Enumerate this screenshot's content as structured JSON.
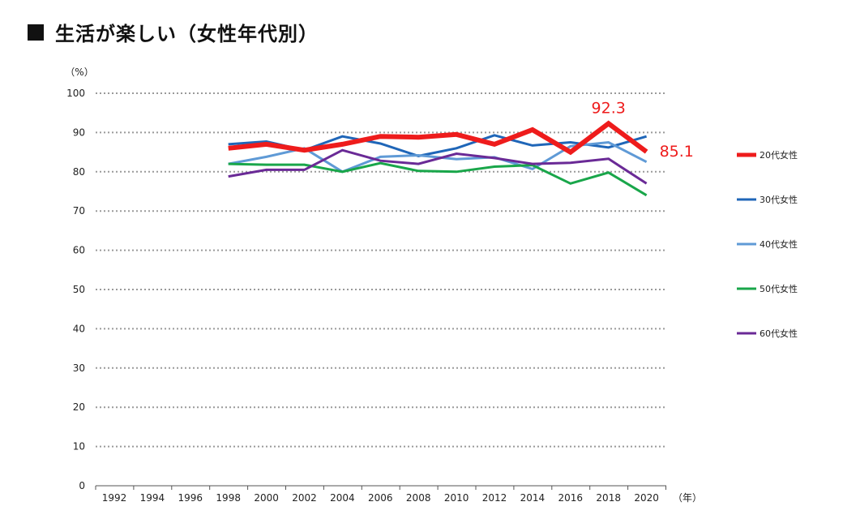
{
  "title": "生活が楽しい（女性年代別）",
  "chart_data": {
    "type": "line",
    "title": "生活が楽しい（女性年代別）",
    "y_unit": "（%）",
    "x_unit": "（年）",
    "ylim": [
      0,
      100
    ],
    "yticks": [
      0,
      10,
      20,
      30,
      40,
      50,
      60,
      70,
      80,
      90,
      100
    ],
    "categories": [
      "1992",
      "1994",
      "1996",
      "1998",
      "2000",
      "2002",
      "2004",
      "2006",
      "2008",
      "2010",
      "2012",
      "2014",
      "2016",
      "2018",
      "2020"
    ],
    "grid": "dotted horizontal",
    "legend_position": "right",
    "series": [
      {
        "name": "20代女性",
        "color": "#ee1c1c",
        "width": 6,
        "values": [
          null,
          null,
          null,
          86.0,
          87.0,
          85.5,
          87.0,
          89.0,
          88.8,
          89.5,
          87.0,
          90.7,
          85.0,
          92.3,
          85.1
        ]
      },
      {
        "name": "30代女性",
        "color": "#1f66b8",
        "width": 3,
        "values": [
          null,
          null,
          null,
          87.0,
          87.7,
          85.5,
          89.0,
          87.2,
          84.0,
          86.0,
          89.3,
          86.7,
          87.5,
          86.2,
          89.0
        ]
      },
      {
        "name": "40代女性",
        "color": "#5f9ad6",
        "width": 3,
        "values": [
          null,
          null,
          null,
          82.0,
          83.8,
          86.0,
          80.0,
          83.8,
          84.2,
          83.2,
          83.7,
          80.7,
          86.5,
          87.5,
          82.5
        ]
      },
      {
        "name": "50代女性",
        "color": "#19a64a",
        "width": 3,
        "values": [
          null,
          null,
          null,
          82.0,
          81.8,
          81.8,
          80.0,
          82.2,
          80.2,
          80.0,
          81.3,
          81.7,
          77.0,
          79.8,
          74.0
        ]
      },
      {
        "name": "60代女性",
        "color": "#6a2a96",
        "width": 3,
        "values": [
          null,
          null,
          null,
          78.8,
          80.5,
          80.5,
          85.5,
          82.8,
          82.0,
          84.6,
          83.5,
          82.0,
          82.3,
          83.3,
          77.0
        ]
      }
    ],
    "annotations": [
      {
        "text": "92.3",
        "category": "2018",
        "value": 92.3,
        "color": "#ee1c1c"
      },
      {
        "text": "85.1",
        "category": "2020",
        "value": 85.1,
        "color": "#ee1c1c"
      }
    ]
  }
}
